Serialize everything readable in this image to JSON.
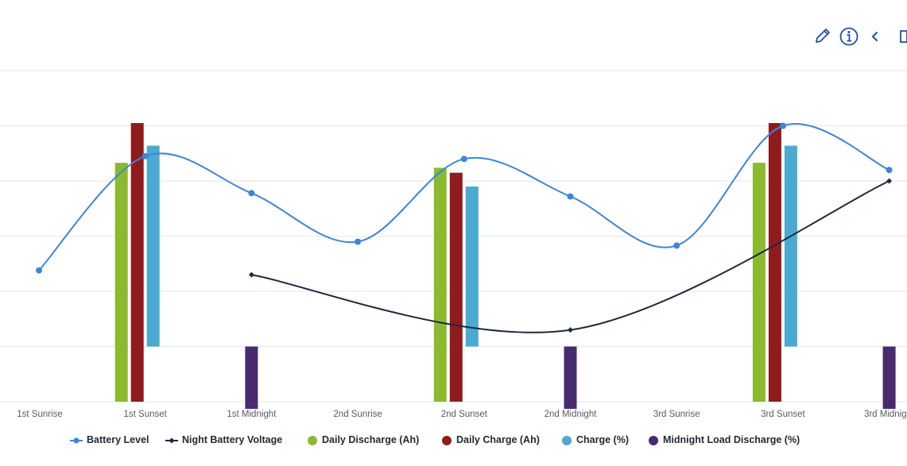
{
  "toolbar": {
    "items": [
      {
        "icon": "pencil-icon",
        "label": "edit"
      },
      {
        "icon": "info-icon",
        "label": "info"
      },
      {
        "icon": "chevron-left-icon",
        "label": "collapse"
      }
    ],
    "color": "#1f4fa3"
  },
  "chart_data": {
    "type": "line",
    "categories": [
      "1st Sunrise",
      "1st Sunset",
      "1st Midnight",
      "2nd Sunrise",
      "2nd Sunset",
      "2nd Midnight",
      "3rd Sunrise",
      "3rd Sunset",
      "3rd Midnight"
    ],
    "grid": true,
    "legend_position": "bottom",
    "y_range": [
      0,
      6
    ],
    "series": [
      {
        "name": "Battery Level",
        "kind": "line",
        "marker": "circle",
        "color": "#3d85d8",
        "values": [
          2.38,
          4.45,
          3.78,
          2.9,
          4.4,
          3.72,
          2.83,
          5.0,
          4.2
        ]
      },
      {
        "name": "Night Battery Voltage",
        "kind": "line",
        "marker": "diamond",
        "color": "#1c2a3f",
        "values": [
          null,
          null,
          2.3,
          null,
          null,
          1.3,
          null,
          null,
          4.0
        ]
      },
      {
        "name": "Daily Discharge (Ah)",
        "kind": "bar",
        "color": "#8bba2f",
        "values": [
          null,
          4.33,
          null,
          null,
          4.24,
          null,
          null,
          4.33,
          null
        ]
      },
      {
        "name": "Daily Charge (Ah)",
        "kind": "bar",
        "color": "#8f1b1d",
        "values": [
          null,
          5.05,
          null,
          null,
          4.15,
          null,
          null,
          5.05,
          null
        ]
      },
      {
        "name": "Charge (%)",
        "kind": "bar",
        "color": "#4aaad0",
        "values": [
          null,
          4.64,
          null,
          null,
          3.9,
          null,
          null,
          4.64,
          null
        ]
      },
      {
        "name": "Midnight Load Discharge (%)",
        "kind": "bar",
        "color": "#4a2a6e",
        "values": [
          null,
          null,
          -0.13,
          null,
          null,
          -0.13,
          null,
          null,
          -0.13
        ]
      }
    ]
  }
}
